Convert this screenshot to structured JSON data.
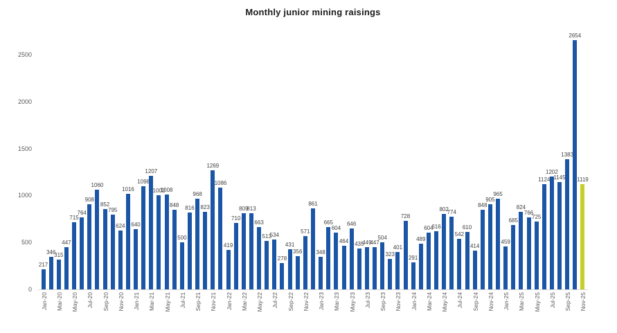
{
  "chart_data": {
    "type": "bar",
    "title": "Monthly junior mining raisings",
    "categories": [
      "Jan-20",
      "Feb-20",
      "Mar-20",
      "Apr-20",
      "May-20",
      "Jun-20",
      "Jul-20",
      "Aug-20",
      "Sep-20",
      "Oct-20",
      "Nov-20",
      "Dec-20",
      "Jan-21",
      "Feb-21",
      "Mar-21",
      "Apr-21",
      "May-21",
      "Jun-21",
      "Jul-21",
      "Aug-21",
      "Sep-21",
      "Oct-21",
      "Nov-21",
      "Dec-21",
      "Jan-22",
      "Feb-22",
      "Mar-22",
      "Apr-22",
      "May-22",
      "Jun-22",
      "Jul-22",
      "Aug-22",
      "Sep-22",
      "Oct-22",
      "Nov-22",
      "Dec-22",
      "Jan-23",
      "Feb-23",
      "Mar-23",
      "Apr-23",
      "May-23",
      "Jun-23",
      "Jul-23",
      "Aug-23",
      "Sep-23",
      "Oct-23",
      "Nov-23",
      "Dec-23",
      "Jan-24",
      "Feb-24",
      "Mar-24",
      "Apr-24",
      "May-24",
      "Jun-24",
      "Jul-24",
      "Aug-24",
      "Sep-24",
      "Oct-24",
      "Nov-24",
      "Dec-24",
      "Jan-25",
      "Feb-25",
      "Mar-25",
      "Apr-25",
      "May-25",
      "Jun-25",
      "Jul-25",
      "Aug-25",
      "Sep-25",
      "Oct-25",
      "Nov-25"
    ],
    "values": [
      217,
      346,
      315,
      447,
      715,
      764,
      908,
      1060,
      852,
      795,
      624,
      1016,
      640,
      1098,
      1207,
      1002,
      1008,
      848,
      500,
      816,
      968,
      823,
      1269,
      1086,
      419,
      710,
      809,
      813,
      663,
      513,
      534,
      278,
      431,
      356,
      571,
      861,
      348,
      665,
      604,
      464,
      646,
      435,
      449,
      447,
      504,
      323,
      401,
      728,
      291,
      489,
      604,
      616,
      802,
      774,
      542,
      610,
      414,
      848,
      905,
      965,
      459,
      685,
      824,
      766,
      725,
      1124,
      1202,
      1145,
      1383,
      2654,
      1119
    ],
    "data_labels_shown": true,
    "yticks": [
      0,
      500,
      1000,
      1500,
      2000,
      2500
    ],
    "ylim": [
      0,
      2700
    ],
    "x_tick_step": 2,
    "bar_color": "#1B56A6",
    "highlight_color": "#C3D02B",
    "highlight_index": 70,
    "axis_text_color": "#595959",
    "grid": "off",
    "legend": "none"
  }
}
